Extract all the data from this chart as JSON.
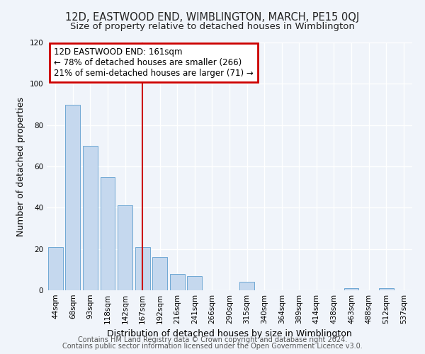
{
  "title": "12D, EASTWOOD END, WIMBLINGTON, MARCH, PE15 0QJ",
  "subtitle": "Size of property relative to detached houses in Wimblington",
  "xlabel": "Distribution of detached houses by size in Wimblington",
  "ylabel": "Number of detached properties",
  "categories": [
    "44sqm",
    "68sqm",
    "93sqm",
    "118sqm",
    "142sqm",
    "167sqm",
    "192sqm",
    "216sqm",
    "241sqm",
    "266sqm",
    "290sqm",
    "315sqm",
    "340sqm",
    "364sqm",
    "389sqm",
    "414sqm",
    "438sqm",
    "463sqm",
    "488sqm",
    "512sqm",
    "537sqm"
  ],
  "values": [
    21,
    90,
    70,
    55,
    41,
    21,
    16,
    8,
    7,
    0,
    0,
    4,
    0,
    0,
    0,
    0,
    0,
    1,
    0,
    1,
    0
  ],
  "bar_color": "#c5d8ee",
  "bar_edge_color": "#6fa8d4",
  "vline_x_index": 5,
  "vline_color": "#cc0000",
  "annotation_lines": [
    "12D EASTWOOD END: 161sqm",
    "← 78% of detached houses are smaller (266)",
    "21% of semi-detached houses are larger (71) →"
  ],
  "annotation_box_color": "#cc0000",
  "ylim": [
    0,
    120
  ],
  "yticks": [
    0,
    20,
    40,
    60,
    80,
    100,
    120
  ],
  "footer1": "Contains HM Land Registry data © Crown copyright and database right 2024.",
  "footer2": "Contains public sector information licensed under the Open Government Licence v3.0.",
  "bg_color": "#f0f4fa",
  "plot_bg_color": "#f0f4fa",
  "grid_color": "#ffffff",
  "title_fontsize": 10.5,
  "subtitle_fontsize": 9.5,
  "axis_label_fontsize": 9,
  "tick_fontsize": 7.5,
  "footer_fontsize": 7,
  "ann_fontsize": 8.5
}
